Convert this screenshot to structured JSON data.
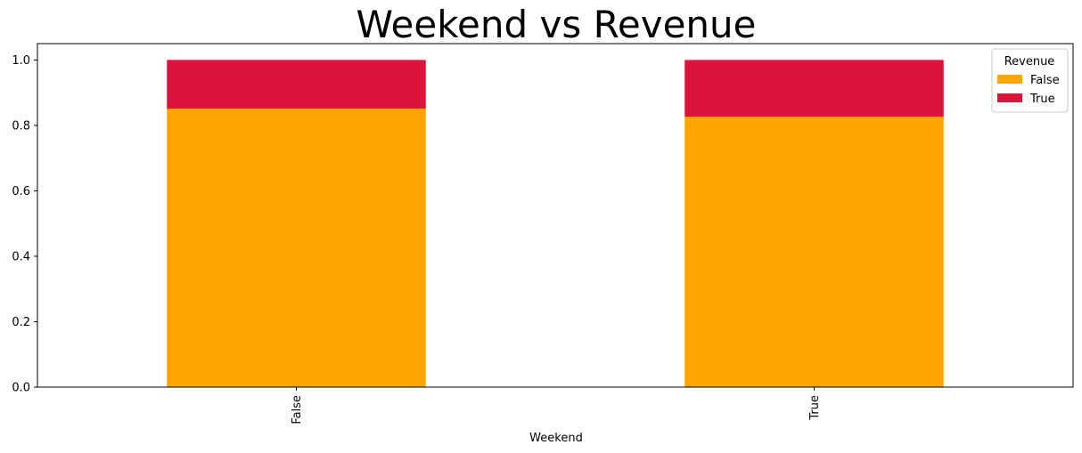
{
  "chart_data": {
    "type": "bar",
    "stacked": true,
    "title": "Weekend vs Revenue",
    "xlabel": "Weekend",
    "ylabel": "",
    "categories": [
      "False",
      "True"
    ],
    "series": [
      {
        "name": "False",
        "color": "#FFA500",
        "values": [
          0.851,
          0.826
        ]
      },
      {
        "name": "True",
        "color": "#DC143C",
        "values": [
          0.149,
          0.174
        ]
      }
    ],
    "ylim": [
      0,
      1.05
    ],
    "yticks": [
      0.0,
      0.2,
      0.4,
      0.6,
      0.8,
      1.0
    ],
    "ytick_labels": [
      "0.0",
      "0.2",
      "0.4",
      "0.6",
      "0.8",
      "1.0"
    ],
    "legend": {
      "title": "Revenue",
      "placement": "top-right"
    },
    "grid": false
  }
}
